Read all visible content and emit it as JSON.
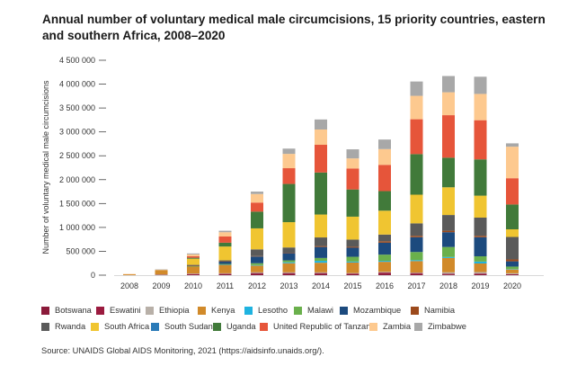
{
  "chart_data": {
    "type": "bar",
    "stacked": true,
    "title": "Annual number of voluntary medical male circumcisions, 15 priority countries, eastern and southern Africa, 2008–2020",
    "xlabel": "",
    "ylabel": "Number of voluntary medical male circumcisions",
    "ylim": [
      0,
      4500000
    ],
    "yticks": [
      "0",
      "500 000",
      "1 000 000",
      "1 500 000",
      "2 000 000",
      "2 500 000",
      "3 000 000",
      "3 500 000",
      "4 000 000",
      "4 500 000"
    ],
    "categories": [
      "2008",
      "2009",
      "2010",
      "2011",
      "2012",
      "2013",
      "2014",
      "2015",
      "2016",
      "2017",
      "2018",
      "2019",
      "2020"
    ],
    "legend_position": "bottom",
    "series": [
      {
        "name": "Botswana",
        "color": "#8b1a3a",
        "values": [
          0,
          5000,
          10000,
          20000,
          30000,
          30000,
          30000,
          20000,
          30000,
          25000,
          15000,
          20000,
          10000
        ]
      },
      {
        "name": "Eswatini",
        "color": "#9b1b3f",
        "values": [
          0,
          5000,
          15000,
          10000,
          15000,
          15000,
          15000,
          15000,
          25000,
          20000,
          15000,
          15000,
          10000
        ]
      },
      {
        "name": "Ethiopia",
        "color": "#b8b0a8",
        "values": [
          0,
          5000,
          10000,
          10000,
          15000,
          15000,
          15000,
          10000,
          15000,
          10000,
          30000,
          30000,
          20000
        ]
      },
      {
        "name": "Kenya",
        "color": "#d18a2a",
        "values": [
          20000,
          90000,
          150000,
          180000,
          140000,
          190000,
          200000,
          220000,
          210000,
          240000,
          300000,
          180000,
          80000
        ]
      },
      {
        "name": "Lesotho",
        "color": "#1fb3e0",
        "values": [
          0,
          0,
          0,
          5000,
          10000,
          20000,
          40000,
          20000,
          20000,
          20000,
          20000,
          40000,
          10000
        ]
      },
      {
        "name": "Malawi",
        "color": "#6ab04c",
        "values": [
          0,
          0,
          5000,
          10000,
          40000,
          40000,
          60000,
          100000,
          130000,
          170000,
          210000,
          110000,
          50000
        ]
      },
      {
        "name": "Mozambique",
        "color": "#1c4a7e",
        "values": [
          0,
          0,
          10000,
          50000,
          140000,
          150000,
          230000,
          190000,
          250000,
          310000,
          310000,
          400000,
          110000
        ]
      },
      {
        "name": "Namibia",
        "color": "#9c4a1c",
        "values": [
          0,
          0,
          5000,
          5000,
          10000,
          10000,
          20000,
          20000,
          30000,
          30000,
          30000,
          30000,
          40000
        ]
      },
      {
        "name": "Rwanda",
        "color": "#5a5a5a",
        "values": [
          0,
          0,
          10000,
          20000,
          140000,
          110000,
          180000,
          150000,
          140000,
          260000,
          330000,
          380000,
          470000
        ]
      },
      {
        "name": "South Africa",
        "color": "#f0c531",
        "values": [
          0,
          0,
          130000,
          290000,
          440000,
          530000,
          480000,
          480000,
          500000,
          600000,
          580000,
          460000,
          160000
        ]
      },
      {
        "name": "South Sudan",
        "color": "#2a7ab8",
        "values": [
          0,
          0,
          0,
          0,
          0,
          0,
          0,
          0,
          0,
          0,
          0,
          0,
          0
        ]
      },
      {
        "name": "Uganda",
        "color": "#417a3a",
        "values": [
          0,
          0,
          20000,
          80000,
          350000,
          800000,
          880000,
          570000,
          410000,
          850000,
          620000,
          760000,
          520000
        ]
      },
      {
        "name": "United Republic of Tanzania",
        "color": "#e6553a",
        "values": [
          0,
          0,
          30000,
          130000,
          190000,
          330000,
          580000,
          440000,
          550000,
          730000,
          890000,
          820000,
          550000
        ]
      },
      {
        "name": "Zambia",
        "color": "#fdc98f",
        "values": [
          5000,
          10000,
          40000,
          90000,
          180000,
          300000,
          320000,
          210000,
          330000,
          490000,
          480000,
          550000,
          660000
        ]
      },
      {
        "name": "Zimbabwe",
        "color": "#a8a8a8",
        "values": [
          0,
          5000,
          20000,
          30000,
          50000,
          110000,
          210000,
          190000,
          200000,
          300000,
          340000,
          360000,
          70000
        ]
      }
    ]
  },
  "source": "Source: UNAIDS Global AIDS Monitoring, 2021 (https://aidsinfo.unaids.org/)."
}
